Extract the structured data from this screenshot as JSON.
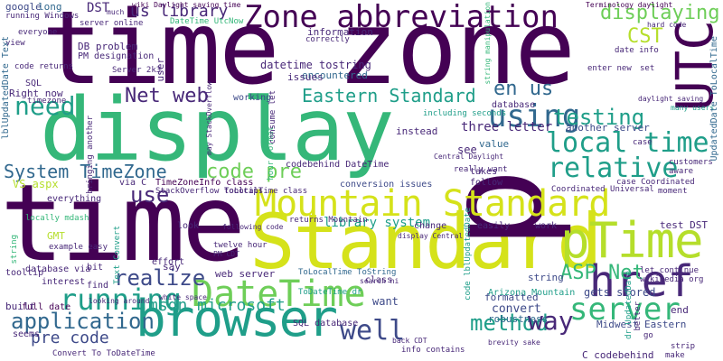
{
  "words": {
    "time_zone": "time zone",
    "display": "display",
    "time": "time",
    "standard": "Standard",
    "p": "p",
    "ptime": "pTime",
    "mountain_standard": "Mountain Standard",
    "zone_abbreviation": "Zone abbreviation",
    "utc": "UTC",
    "browser": "browser",
    "datetime": "DateTime",
    "href": "href",
    "local_time": "local time",
    "server": "server",
    "running": "running",
    "well": "well",
    "using": "using",
    "relative": "relative",
    "application": "application",
    "eastern_standard": "Eastern Standard",
    "system_timezone": "System TimeZone",
    "displaying": "displaying",
    "net_web": "Net web",
    "us_library": "us library",
    "testing": "testing",
    "code_pre": "code pre",
    "method": "method",
    "way": "way",
    "need": "need",
    "realize": "realize",
    "asp_net": "ASP Net",
    "pre_code": "pre code",
    "msdn_microsoft": "msdn microsoft",
    "use": "use",
    "en_us": "en us",
    "cst": "CST",
    "dst": "DST",
    "google": "google",
    "long": "long",
    "datetime_tostring": "datetime tostring",
    "information": "information",
    "encountered": "encountered",
    "issues": "issues",
    "three_letter": "three letter",
    "another_server": "another server",
    "codebehind_datetime": "codebehind DateTime",
    "timezoneinfo_class": "TimeZoneInfo class",
    "library_system": "library system",
    "conversion_issues": "conversion issues",
    "returns_mountain": "returns Mountain",
    "test_dst": "test DST",
    "arizona_mountain": "Arizona Mountain",
    "gets_stored": "gets stored",
    "midwest_eastern": "Midwest Eastern",
    "c_codebehind": "C codebehind",
    "web_server": "web server",
    "tolocaltime_tostring": "ToLocalTime ToString",
    "robustness": "robustness",
    "formatted": "formatted",
    "convert": "convert",
    "string": "string",
    "want": "want",
    "sql_database": "SQL database",
    "convert_to_todatetime": "Convert To ToDateTime",
    "info_contains": "info contains",
    "database_via": "database via",
    "gmt": "GMT",
    "vs_aspx": "VS aspx",
    "working": "working",
    "look": "look",
    "say": "say",
    "everything": "everything",
    "full_date": "full date",
    "tooltip": "tooltip",
    "interest": "interest",
    "built": "built",
    "seems": "seems",
    "effort": "effort",
    "find": "find",
    "bit": "bit",
    "class": "class",
    "change": "change",
    "easily": "easily",
    "work": "work",
    "value": "value",
    "see": "see",
    "follow": "follow",
    "takes": "takes",
    "instead": "instead",
    "example_easy": "example easy",
    "locally_mdash": "locally mdash",
    "database": "database",
    "sql": "SQL",
    "right_now": "Right now",
    "timezone": "timezone",
    "everyone": "everyone",
    "db_problem": "DB  problem",
    "pm_designation": "PM designation",
    "server_2k3": "Server 2k3",
    "code_returns": "code returns",
    "view": "view",
    "correctly": "correctly",
    "server_online": "server online",
    "running_windows": "running Windows",
    "datetime_utcnow": "DateTime UtcNow",
    "date_info": "date info",
    "enter_new": "enter new",
    "set": "set",
    "customers": "customers",
    "aware": "aware",
    "moment": "moment",
    "end": "end",
    "go": "go",
    "better": "better",
    "make": "make",
    "strip": "strip",
    "case": "case",
    "user": "user",
    "including_seconds": "including seconds",
    "let_continue": "let continue",
    "wikipedia_org": "wikipedia org",
    "case_coordinated": "case Coordinated",
    "coordinated_universal": "Coordinated Universal",
    "twelve_hour": "twelve hour",
    "pm_cdt": "PM CDT",
    "following_code": "following code",
    "tolocaltime_class": "ToLocalTime class",
    "stackoverflow_tooltips": "StackOverflow tooltips",
    "via_c": "via C",
    "bringing_another": "bringing another",
    "may_stackoverflow": "may StackOverflow",
    "string_manipulation": "string manipulation",
    "updateddate_tolocaltime": "UpdatedDate ToLocalTime",
    "lblupdateddate_text": "lblUpdatedDate Text",
    "code_lblupdateddate": "code lblUpdatedDate",
    "todatetime_dr": "ToDateTime dr",
    "dr_updateddate": "dr UpdatedDate",
    "text_convert": "Text Convert",
    "hour_format": "hour format",
    "consume_let": "consume let",
    "really_want": "really want",
    "search_hi": "search hi",
    "wiki_daylight": "wiki Daylight saving time",
    "terminology_daylight": "Terminology daylight",
    "much": "much",
    "back_cdt": "back CDT",
    "brevity_sake": "brevity sake",
    "white_space": "white space",
    "looking_around": "looking around",
    "display_central": "display Central",
    "central_daylight": "Central Daylight",
    "hard_code": "hard code",
    "daylight_saving": "daylight saving",
    "many_users": "many users"
  }
}
